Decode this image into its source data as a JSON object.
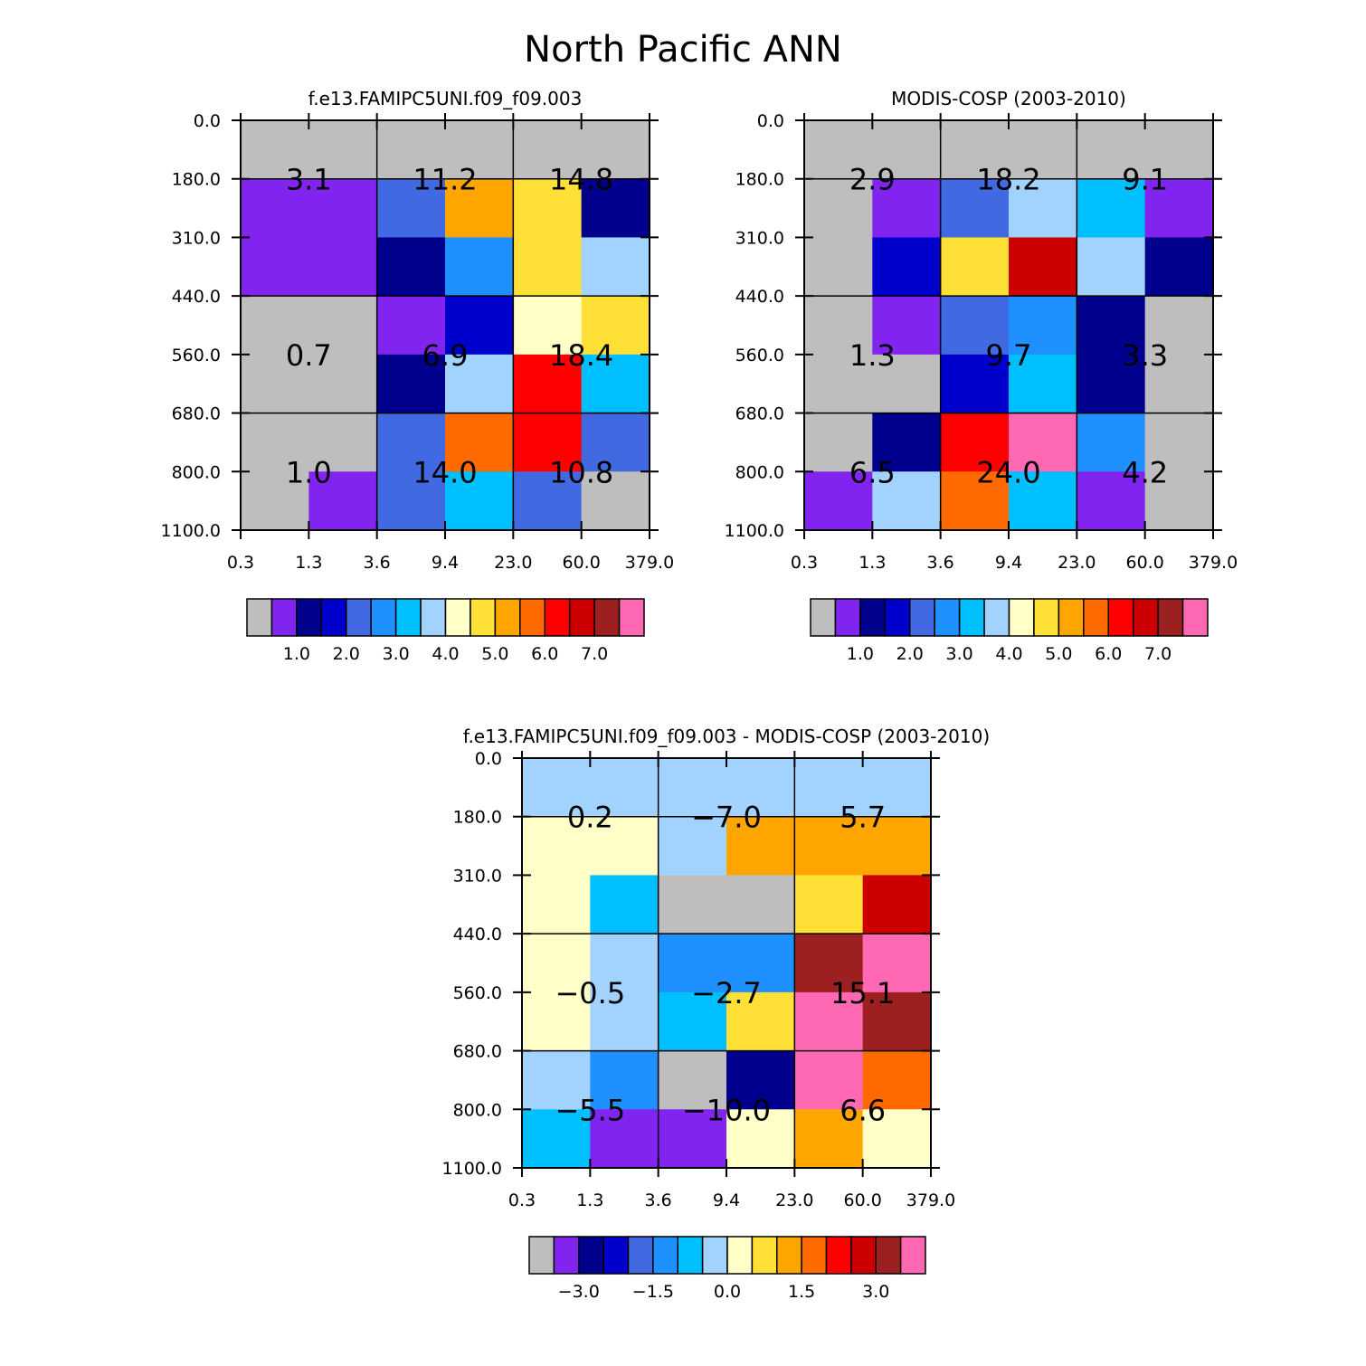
{
  "title": "North Pacific ANN",
  "colors": {
    "palette": [
      "#BEBEBE",
      "#8224F0",
      "#00008C",
      "#0000CD",
      "#4169E1",
      "#1E90FF",
      "#00BFFF",
      "#A2D3FF",
      "#FFFFC8",
      "#FFE036",
      "#FFA500",
      "#FF6A00",
      "#FF0000",
      "#CD0000",
      "#9C2020",
      "#FF69B4"
    ]
  },
  "chart_data": [
    {
      "type": "heatmap",
      "title": "f.e13.FAMIPC5UNI.f09_f09.003",
      "xticks": [
        "0.3",
        "1.3",
        "3.6",
        "9.4",
        "23.0",
        "60.0",
        "379.0"
      ],
      "yticks": [
        "0.0",
        "180.0",
        "310.0",
        "440.0",
        "560.0",
        "680.0",
        "800.0",
        "1100.0"
      ],
      "cells": [
        [
          0,
          0,
          0,
          0,
          0,
          0
        ],
        [
          1,
          1,
          4,
          10,
          9,
          2
        ],
        [
          1,
          1,
          2,
          5,
          9,
          7
        ],
        [
          0,
          0,
          1,
          3,
          8,
          9
        ],
        [
          0,
          0,
          2,
          7,
          12,
          6
        ],
        [
          0,
          0,
          4,
          11,
          12,
          4
        ],
        [
          0,
          1,
          4,
          6,
          4,
          0
        ]
      ],
      "labels": [
        {
          "text": "3.1",
          "row": "high",
          "col": "thin"
        },
        {
          "text": "11.2",
          "row": "high",
          "col": "medium"
        },
        {
          "text": "14.8",
          "row": "high",
          "col": "thick"
        },
        {
          "text": "0.7",
          "row": "mid",
          "col": "thin"
        },
        {
          "text": "6.9",
          "row": "mid",
          "col": "medium"
        },
        {
          "text": "18.4",
          "row": "mid",
          "col": "thick"
        },
        {
          "text": "1.0",
          "row": "low",
          "col": "thin"
        },
        {
          "text": "14.0",
          "row": "low",
          "col": "medium"
        },
        {
          "text": "10.8",
          "row": "low",
          "col": "thick"
        }
      ],
      "colorbar": {
        "labels": [
          "1.0",
          "2.0",
          "3.0",
          "4.0",
          "5.0",
          "6.0",
          "7.0"
        ]
      }
    },
    {
      "type": "heatmap",
      "title": "MODIS-COSP (2003-2010)",
      "xticks": [
        "0.3",
        "1.3",
        "3.6",
        "9.4",
        "23.0",
        "60.0",
        "379.0"
      ],
      "yticks": [
        "0.0",
        "180.0",
        "310.0",
        "440.0",
        "560.0",
        "680.0",
        "800.0",
        "1100.0"
      ],
      "cells": [
        [
          0,
          0,
          0,
          0,
          0,
          0
        ],
        [
          0,
          1,
          4,
          7,
          6,
          1
        ],
        [
          0,
          3,
          9,
          13,
          7,
          2
        ],
        [
          0,
          1,
          4,
          5,
          2,
          0
        ],
        [
          0,
          0,
          3,
          6,
          2,
          0
        ],
        [
          0,
          2,
          12,
          15,
          5,
          0
        ],
        [
          1,
          7,
          11,
          6,
          1,
          0
        ]
      ],
      "labels": [
        {
          "text": "2.9",
          "row": "high",
          "col": "thin"
        },
        {
          "text": "18.2",
          "row": "high",
          "col": "medium"
        },
        {
          "text": "9.1",
          "row": "high",
          "col": "thick"
        },
        {
          "text": "1.3",
          "row": "mid",
          "col": "thin"
        },
        {
          "text": "9.7",
          "row": "mid",
          "col": "medium"
        },
        {
          "text": "3.3",
          "row": "mid",
          "col": "thick"
        },
        {
          "text": "6.5",
          "row": "low",
          "col": "thin"
        },
        {
          "text": "24.0",
          "row": "low",
          "col": "medium"
        },
        {
          "text": "4.2",
          "row": "low",
          "col": "thick"
        }
      ],
      "colorbar": {
        "labels": [
          "1.0",
          "2.0",
          "3.0",
          "4.0",
          "5.0",
          "6.0",
          "7.0"
        ]
      }
    },
    {
      "type": "heatmap",
      "title": "f.e13.FAMIPC5UNI.f09_f09.003 - MODIS-COSP (2003-2010)",
      "xticks": [
        "0.3",
        "1.3",
        "3.6",
        "9.4",
        "23.0",
        "60.0",
        "379.0"
      ],
      "yticks": [
        "0.0",
        "180.0",
        "310.0",
        "440.0",
        "560.0",
        "680.0",
        "800.0",
        "1100.0"
      ],
      "cells": [
        [
          7,
          7,
          7,
          7,
          7,
          7
        ],
        [
          8,
          8,
          7,
          10,
          10,
          10
        ],
        [
          8,
          6,
          0,
          0,
          9,
          13
        ],
        [
          8,
          7,
          5,
          5,
          14,
          15
        ],
        [
          8,
          7,
          6,
          9,
          15,
          14
        ],
        [
          7,
          5,
          0,
          2,
          15,
          11
        ],
        [
          6,
          1,
          1,
          8,
          10,
          8
        ]
      ],
      "labels": [
        {
          "text": "0.2",
          "row": "high",
          "col": "thin"
        },
        {
          "text": "−7.0",
          "row": "high",
          "col": "medium"
        },
        {
          "text": "5.7",
          "row": "high",
          "col": "thick"
        },
        {
          "text": "−0.5",
          "row": "mid",
          "col": "thin"
        },
        {
          "text": "−2.7",
          "row": "mid",
          "col": "medium"
        },
        {
          "text": "15.1",
          "row": "mid",
          "col": "thick"
        },
        {
          "text": "−5.5",
          "row": "low",
          "col": "thin"
        },
        {
          "text": "−10.0",
          "row": "low",
          "col": "medium"
        },
        {
          "text": "6.6",
          "row": "low",
          "col": "thick"
        }
      ],
      "colorbar": {
        "labels": [
          "−3.0",
          "−1.5",
          "0.0",
          "1.5",
          "3.0"
        ]
      }
    }
  ]
}
